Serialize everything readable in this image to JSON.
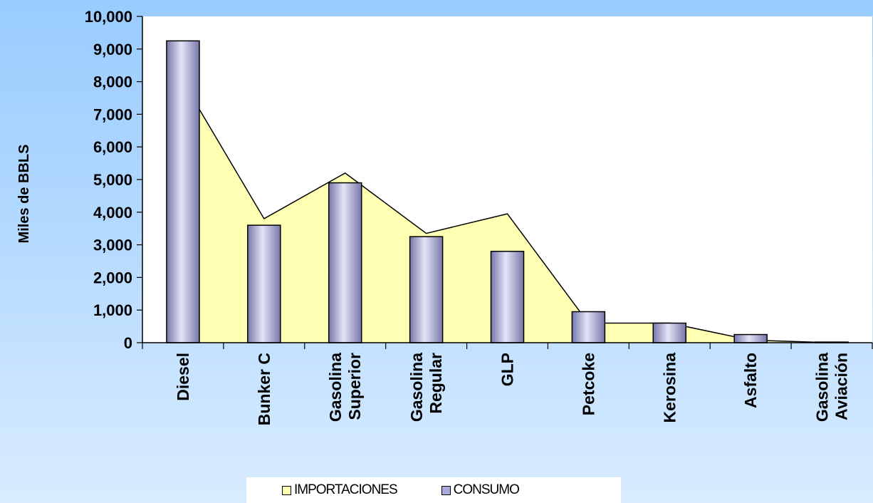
{
  "chart_data": {
    "type": "bar",
    "title": "",
    "xlabel": "",
    "ylabel": "Miles de BBLS",
    "ylim": [
      0,
      10000
    ],
    "y_ticks": [
      "0",
      "1,000",
      "2,000",
      "3,000",
      "4,000",
      "5,000",
      "6,000",
      "7,000",
      "8,000",
      "9,000",
      "10,000"
    ],
    "categories": [
      [
        "Diesel"
      ],
      [
        "Bunker C"
      ],
      [
        "Gasolina",
        "Superior"
      ],
      [
        "Gasolina",
        "Regular"
      ],
      [
        "GLP"
      ],
      [
        "Petcoke"
      ],
      [
        "Kerosina"
      ],
      [
        "Asfalto"
      ],
      [
        "Gasolina",
        "Aviación"
      ]
    ],
    "series": [
      {
        "name": "IMPORTACIONES",
        "type": "area",
        "color": "#ffffb3",
        "values": [
          8000,
          3800,
          5200,
          3350,
          3950,
          600,
          600,
          80,
          0
        ]
      },
      {
        "name": "CONSUMO",
        "type": "bar",
        "color": "#aaaadd",
        "values": [
          9250,
          3600,
          4900,
          3250,
          2800,
          950,
          600,
          250,
          20
        ]
      }
    ],
    "grid": false,
    "legend_position": "bottom"
  }
}
